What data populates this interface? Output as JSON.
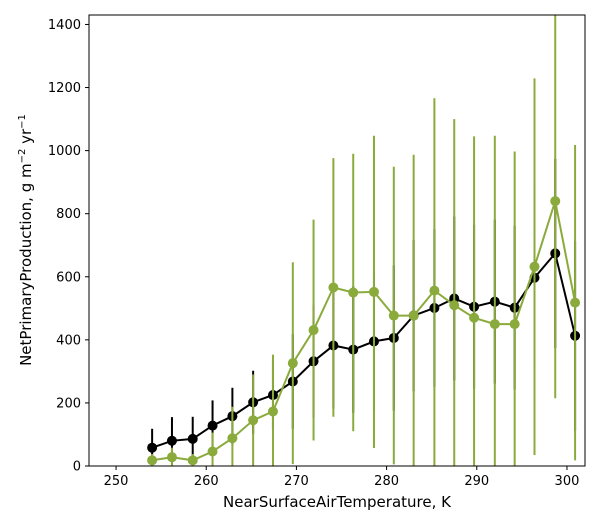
{
  "chart_data": {
    "type": "line",
    "title": "",
    "xlabel": "NearSurfaceAirTemperature,  K",
    "ylabel": {
      "prefix": "NetPrimaryProduction,  g m",
      "sup1": "−2",
      "mid": " yr",
      "sup2": "−1"
    },
    "xlim": [
      247,
      302
    ],
    "ylim": [
      0,
      1430
    ],
    "xticks": [
      250,
      260,
      270,
      280,
      290,
      300
    ],
    "yticks": [
      0,
      200,
      400,
      600,
      800,
      1000,
      1200,
      1400
    ],
    "grid": false,
    "legend": "none",
    "series": [
      {
        "color": "#000000",
        "points": [
          {
            "x": 254.0,
            "y": 58,
            "err": 60
          },
          {
            "x": 256.2,
            "y": 80,
            "err": 75
          },
          {
            "x": 258.5,
            "y": 86,
            "err": 70
          },
          {
            "x": 260.7,
            "y": 128,
            "err": 80
          },
          {
            "x": 262.9,
            "y": 158,
            "err": 90
          },
          {
            "x": 265.2,
            "y": 202,
            "err": 100
          },
          {
            "x": 267.4,
            "y": 225,
            "err": 110
          },
          {
            "x": 269.6,
            "y": 268,
            "err": 150
          },
          {
            "x": 271.9,
            "y": 332,
            "err": 180
          },
          {
            "x": 274.1,
            "y": 382,
            "err": 200
          },
          {
            "x": 276.3,
            "y": 369,
            "err": 200
          },
          {
            "x": 278.6,
            "y": 395,
            "err": 220
          },
          {
            "x": 280.8,
            "y": 406,
            "err": 230
          },
          {
            "x": 283.0,
            "y": 477,
            "err": 240
          },
          {
            "x": 285.3,
            "y": 501,
            "err": 250
          },
          {
            "x": 287.5,
            "y": 531,
            "err": 260
          },
          {
            "x": 289.7,
            "y": 505,
            "err": 260
          },
          {
            "x": 292.0,
            "y": 521,
            "err": 260
          },
          {
            "x": 294.2,
            "y": 502,
            "err": 260
          },
          {
            "x": 296.4,
            "y": 597,
            "err": 280
          },
          {
            "x": 298.7,
            "y": 674,
            "err": 300
          },
          {
            "x": 300.9,
            "y": 413,
            "err": 300
          }
        ]
      },
      {
        "color": "#8aab3c",
        "points": [
          {
            "x": 254.0,
            "y": 18,
            "err": 20
          },
          {
            "x": 256.2,
            "y": 28,
            "err": 30
          },
          {
            "x": 258.5,
            "y": 18,
            "err": 20
          },
          {
            "x": 260.7,
            "y": 46,
            "err": 60
          },
          {
            "x": 262.9,
            "y": 88,
            "err": 100
          },
          {
            "x": 265.2,
            "y": 145,
            "err": 145
          },
          {
            "x": 267.4,
            "y": 173,
            "err": 180
          },
          {
            "x": 269.6,
            "y": 326,
            "err": 320
          },
          {
            "x": 271.9,
            "y": 431,
            "err": 350
          },
          {
            "x": 274.1,
            "y": 566,
            "err": 410
          },
          {
            "x": 276.3,
            "y": 550,
            "err": 440
          },
          {
            "x": 278.6,
            "y": 552,
            "err": 495
          },
          {
            "x": 280.8,
            "y": 477,
            "err": 472
          },
          {
            "x": 283.0,
            "y": 477,
            "err": 510
          },
          {
            "x": 285.3,
            "y": 556,
            "err": 610
          },
          {
            "x": 287.5,
            "y": 510,
            "err": 590
          },
          {
            "x": 289.7,
            "y": 470,
            "err": 575
          },
          {
            "x": 292.0,
            "y": 450,
            "err": 597
          },
          {
            "x": 294.2,
            "y": 450,
            "err": 547
          },
          {
            "x": 296.4,
            "y": 632,
            "err": 597
          },
          {
            "x": 298.7,
            "y": 840,
            "err": 625
          },
          {
            "x": 300.9,
            "y": 518,
            "err": 500
          }
        ]
      }
    ]
  }
}
